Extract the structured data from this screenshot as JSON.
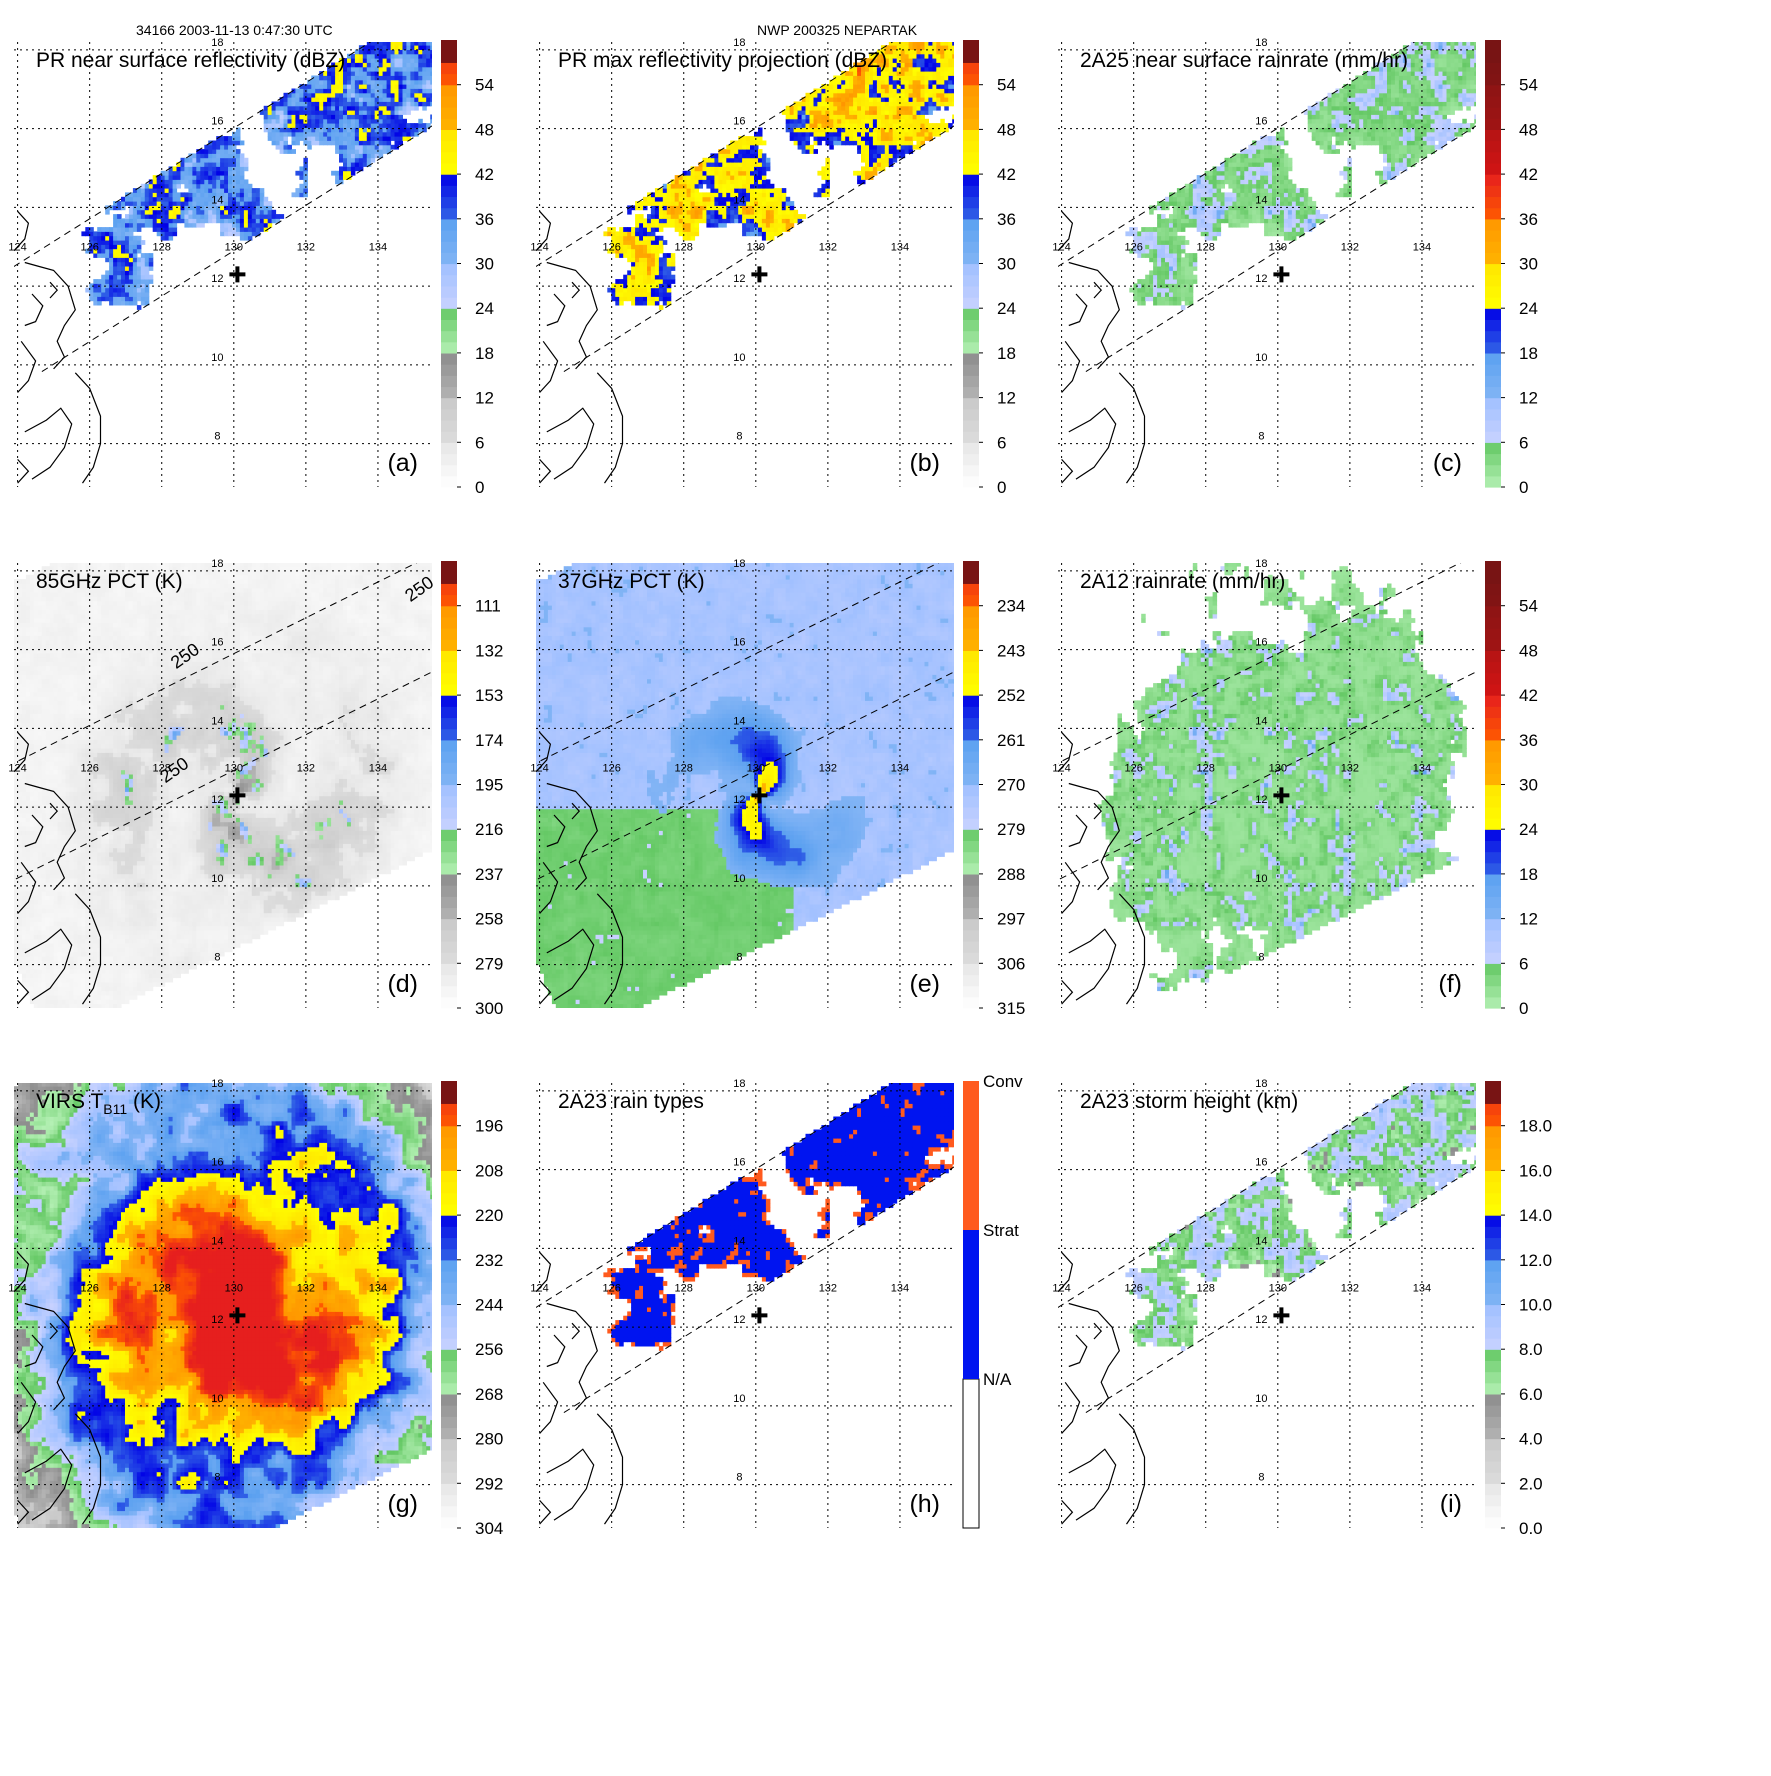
{
  "header": {
    "orbit_time": "34166 2003-11-13 0:47:30 UTC",
    "storm": "NWP 200325 NEPARTAK"
  },
  "map": {
    "lon_ticks": [
      "124",
      "126",
      "128",
      "130",
      "132",
      "134"
    ],
    "lat_ticks": [
      "18",
      "16",
      "14",
      "12",
      "10",
      "8"
    ],
    "lon_range": [
      123.9,
      135.5
    ],
    "lat_range": [
      6.9,
      18.2
    ]
  },
  "colors": {
    "gray_lo": "#ffffff",
    "gray_mid": "#c8c8c8",
    "gray_hi": "#8c8c8c",
    "green_lo": "#b4f0b4",
    "green_hi": "#64c864",
    "blue_lo": "#c8d2ff",
    "blue_mid": "#5aa0f0",
    "blue_hi": "#0000e6",
    "yellow": "#ffff00",
    "orange": "#ff9600",
    "red": "#e61e1e",
    "darkred": "#781414",
    "conv": "#ff5a1e",
    "strat": "#0014f0",
    "na": "#ffffff"
  },
  "chart_data": [
    {
      "type": "heatmap",
      "id": "a",
      "title": "PR near surface reflectivity (dBZ)",
      "label": "(a)",
      "colorbar": [
        "0",
        "6",
        "12",
        "18",
        "24",
        "30",
        "36",
        "42",
        "48",
        "54"
      ],
      "swath": "pr",
      "field": "pr"
    },
    {
      "type": "heatmap",
      "id": "b",
      "title": "PR max reflectivity projection (dBZ)",
      "label": "(b)",
      "colorbar": [
        "0",
        "6",
        "12",
        "18",
        "24",
        "30",
        "36",
        "42",
        "48",
        "54"
      ],
      "swath": "pr",
      "field": "prmax"
    },
    {
      "type": "heatmap",
      "id": "c",
      "title": "2A25 near surface rainrate (mm/hr)",
      "label": "(c)",
      "colorbar": [
        "0",
        "6",
        "12",
        "18",
        "24",
        "30",
        "36",
        "42",
        "48",
        "54"
      ],
      "swath": "pr",
      "field": "rain"
    },
    {
      "type": "heatmap",
      "id": "d",
      "title": "85GHz PCT (K)",
      "label": "(d)",
      "colorbar": [
        "300",
        "279",
        "258",
        "237",
        "216",
        "195",
        "174",
        "153",
        "132",
        "111"
      ],
      "swath": "wide",
      "field": "pct85",
      "annotations": [
        "250",
        "250",
        "250"
      ]
    },
    {
      "type": "heatmap",
      "id": "e",
      "title": "37GHz PCT (K)",
      "label": "(e)",
      "colorbar": [
        "315",
        "306",
        "297",
        "288",
        "279",
        "270",
        "261",
        "252",
        "243",
        "234"
      ],
      "swath": "wide",
      "field": "pct37"
    },
    {
      "type": "heatmap",
      "id": "f",
      "title": "2A12 rainrate (mm/hr)",
      "label": "(f)",
      "colorbar": [
        "0",
        "6",
        "12",
        "18",
        "24",
        "30",
        "36",
        "42",
        "48",
        "54"
      ],
      "swath": "wide",
      "field": "rain12"
    },
    {
      "type": "heatmap",
      "id": "g",
      "title_main": "VIRS T",
      "title_sub": "B11",
      "title_unit": " (K)",
      "label": "(g)",
      "colorbar": [
        "304",
        "292",
        "280",
        "268",
        "256",
        "244",
        "232",
        "220",
        "208",
        "196"
      ],
      "swath": "virs",
      "field": "virs"
    },
    {
      "type": "heatmap",
      "id": "h",
      "title": "2A23 rain types",
      "label": "(h)",
      "categories": [
        "N/A",
        "Strat",
        "Conv"
      ],
      "swath": "pr",
      "field": "types"
    },
    {
      "type": "heatmap",
      "id": "i",
      "title": "2A23 storm height (km)",
      "label": "(i)",
      "colorbar": [
        "0.0",
        "2.0",
        "4.0",
        "6.0",
        "8.0",
        "10.0",
        "12.0",
        "14.0",
        "16.0",
        "18.0"
      ],
      "swath": "pr",
      "field": "height"
    }
  ]
}
